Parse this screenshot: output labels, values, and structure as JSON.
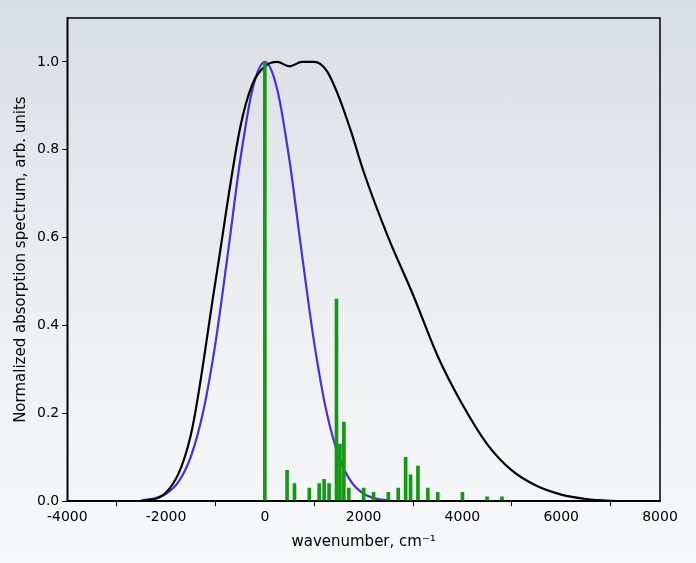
{
  "chart_data": {
    "type": "line",
    "x_label": "wavenumber, cm⁻¹",
    "y_label": "Normalized absorption spectrum, arb. units",
    "xlim": [
      -4000,
      8000
    ],
    "xticks": [
      -4000,
      -2000,
      0,
      2000,
      4000,
      6000,
      8000
    ],
    "ylim": [
      0,
      1.1
    ],
    "yticks": [
      {
        "value": 0,
        "label": "0.0"
      },
      0.2,
      0.4,
      0.6,
      0.8,
      {
        "value": 1,
        "label": "1.0"
      }
    ],
    "grid": false,
    "series": [
      {
        "color": "#000000",
        "type": "line",
        "x": [
          -2500,
          -2000,
          -1500,
          -1000,
          -500,
          -250,
          0,
          250,
          500,
          750,
          1000,
          1250,
          1500,
          1750,
          2000,
          2500,
          3000,
          3500,
          4000,
          4500,
          5000,
          5500,
          6000,
          6500,
          7000,
          7500
        ],
        "values": [
          0,
          0.02,
          0.15,
          0.5,
          0.85,
          0.95,
          0.99,
          1.0,
          0.99,
          1.0,
          1.0,
          0.98,
          0.92,
          0.84,
          0.75,
          0.6,
          0.47,
          0.33,
          0.22,
          0.13,
          0.07,
          0.035,
          0.015,
          0.005,
          0.001,
          0
        ]
      },
      {
        "color": "#4a2ee0",
        "type": "line",
        "x": [
          -2500,
          -2250,
          -2000,
          -1750,
          -1500,
          -1250,
          -1000,
          -750,
          -500,
          -250,
          0,
          250,
          500,
          750,
          1000,
          1250,
          1500,
          1750,
          2000,
          2250,
          2500
        ],
        "values": [
          0.002,
          0.006,
          0.017,
          0.044,
          0.101,
          0.203,
          0.36,
          0.563,
          0.775,
          0.938,
          1.0,
          0.938,
          0.775,
          0.563,
          0.36,
          0.203,
          0.101,
          0.044,
          0.017,
          0.006,
          0.002
        ]
      },
      {
        "color": "#139a13",
        "type": "bar",
        "x": [
          0,
          450,
          600,
          900,
          1100,
          1200,
          1300,
          1450,
          1520,
          1600,
          1700,
          2000,
          2200,
          2500,
          2700,
          2850,
          2950,
          3100,
          3300,
          3500,
          4000,
          4500,
          4800
        ],
        "values": [
          1.0,
          0.07,
          0.04,
          0.03,
          0.04,
          0.05,
          0.04,
          0.46,
          0.13,
          0.18,
          0.03,
          0.03,
          0.02,
          0.02,
          0.03,
          0.1,
          0.06,
          0.08,
          0.03,
          0.02,
          0.02,
          0.01,
          0.01
        ]
      }
    ]
  }
}
